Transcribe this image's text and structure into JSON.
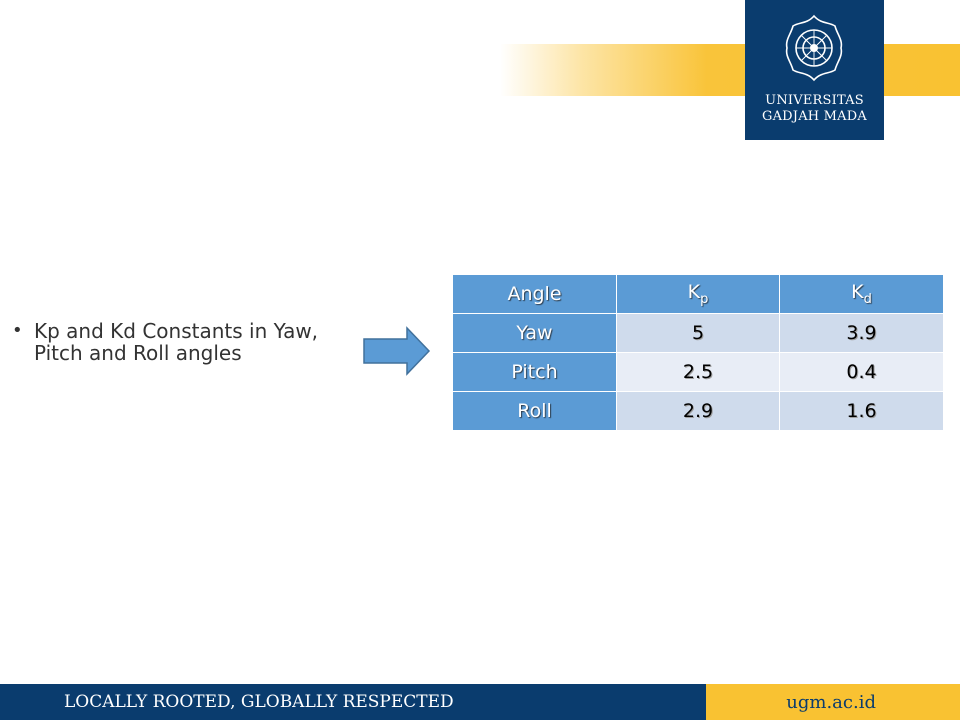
{
  "brand": {
    "university_line1": "UNIVERSITAS",
    "university_line2": "GADJAH MADA",
    "logo_icon": "ugm-seal-icon",
    "navy": "#0a3c6e",
    "gold": "#f9c232"
  },
  "slide": {
    "bullet_text": "Kp and Kd Constants in Yaw, Pitch and Roll angles",
    "arrow_icon": "right-arrow-icon"
  },
  "table": {
    "headers": {
      "angle": "Angle",
      "kp_main": "K",
      "kp_sub": "p",
      "kd_main": "K",
      "kd_sub": "d"
    },
    "rows": [
      {
        "angle": "Yaw",
        "kp": "5",
        "kd": "3.9"
      },
      {
        "angle": "Pitch",
        "kp": "2.5",
        "kd": "0.4"
      },
      {
        "angle": "Roll",
        "kp": "2.9",
        "kd": "1.6"
      }
    ],
    "header_color": "#5b9bd5"
  },
  "footer": {
    "tagline": "LOCALLY ROOTED, GLOBALLY RESPECTED",
    "website": "ugm.ac.id"
  }
}
